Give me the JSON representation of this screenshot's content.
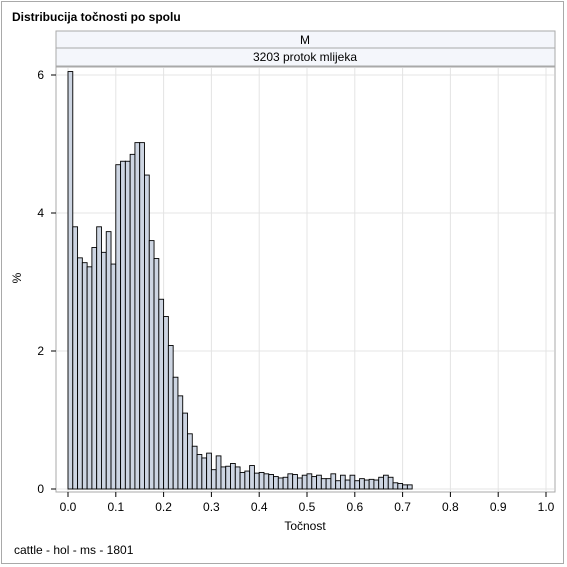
{
  "chart_data": {
    "type": "bar",
    "title": "Distribucija točnosti po spolu",
    "panel_header": "M",
    "panel_subheader": "3203 protok mlijeka",
    "xlabel": "Točnost",
    "ylabel": "%",
    "footnote": "cattle - hol - ms - 1801",
    "xlim": [
      0,
      1
    ],
    "ylim": [
      0,
      6
    ],
    "bin_width": 0.01,
    "grid": true,
    "x_ticks": [
      "0.0",
      "0.1",
      "0.2",
      "0.3",
      "0.4",
      "0.5",
      "0.6",
      "0.7",
      "0.8",
      "0.9",
      "1.0"
    ],
    "y_ticks": [
      "0",
      "2",
      "4",
      "6"
    ],
    "colors": {
      "bar_fill": "#cdd5e2",
      "bar_stroke": "#000000",
      "grid": "#e4e4e4",
      "header_fill": "#f4f6fb"
    },
    "values": [
      6.05,
      3.8,
      3.35,
      3.28,
      3.22,
      3.5,
      3.8,
      3.43,
      3.73,
      3.26,
      4.7,
      4.75,
      4.75,
      4.85,
      5.02,
      5.02,
      4.55,
      3.6,
      3.34,
      2.75,
      2.5,
      2.08,
      1.62,
      1.35,
      1.1,
      0.8,
      0.62,
      0.5,
      0.45,
      0.52,
      0.28,
      0.48,
      0.32,
      0.33,
      0.37,
      0.32,
      0.24,
      0.26,
      0.34,
      0.23,
      0.24,
      0.22,
      0.21,
      0.18,
      0.16,
      0.17,
      0.22,
      0.21,
      0.16,
      0.2,
      0.22,
      0.18,
      0.2,
      0.15,
      0.15,
      0.22,
      0.12,
      0.2,
      0.13,
      0.2,
      0.12,
      0.15,
      0.13,
      0.14,
      0.13,
      0.17,
      0.2,
      0.17,
      0.09,
      0.08,
      0.06,
      0.06
    ]
  }
}
